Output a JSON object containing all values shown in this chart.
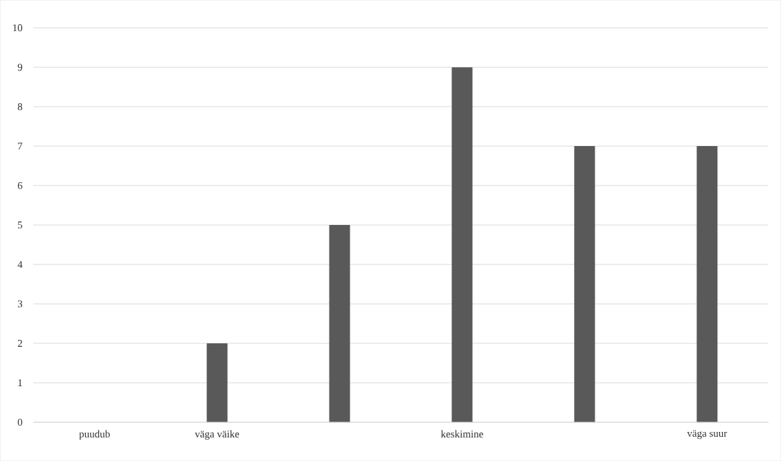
{
  "chart_data": {
    "type": "bar",
    "categories": [
      "puudub",
      "väga väike",
      null,
      "keskimine",
      null,
      "väga suur"
    ],
    "values": [
      0,
      2,
      5,
      9,
      7,
      7
    ],
    "color": "#595959",
    "ylim": [
      0,
      10
    ],
    "yticks": [
      0,
      1,
      2,
      3,
      4,
      5,
      6,
      7,
      8,
      9,
      10
    ],
    "grid": "y"
  }
}
